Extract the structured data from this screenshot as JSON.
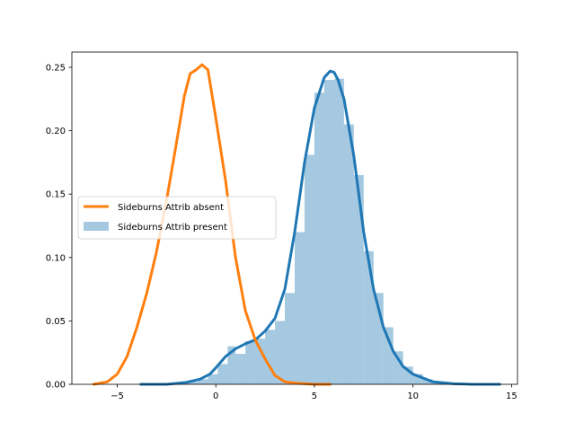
{
  "chart_data": {
    "type": "area",
    "title": "",
    "xlabel": "",
    "ylabel": "",
    "xlim": [
      -7.3,
      15.3
    ],
    "ylim": [
      0,
      0.262
    ],
    "x_ticks": [
      -5,
      0,
      5,
      10,
      15
    ],
    "y_ticks": [
      0.0,
      0.05,
      0.1,
      0.15,
      0.2,
      0.25
    ],
    "x_tick_labels": [
      "−5",
      "0",
      "5",
      "10",
      "15"
    ],
    "y_tick_labels": [
      "0.00",
      "0.05",
      "0.10",
      "0.15",
      "0.20",
      "0.25"
    ],
    "legend_placement": "center-left",
    "series": [
      {
        "name": "Sideburns Attrib absent",
        "type": "line",
        "color": "#ff7f0e",
        "x": [
          -6.2,
          -5.5,
          -5.0,
          -4.5,
          -4.0,
          -3.5,
          -3.0,
          -2.5,
          -2.0,
          -1.6,
          -1.3,
          -1.0,
          -0.7,
          -0.4,
          0.0,
          0.5,
          1.0,
          1.5,
          2.0,
          2.5,
          3.0,
          3.5,
          4.0,
          5.0,
          5.8
        ],
        "y": [
          0.0,
          0.002,
          0.008,
          0.022,
          0.045,
          0.072,
          0.105,
          0.145,
          0.19,
          0.227,
          0.245,
          0.248,
          0.252,
          0.248,
          0.21,
          0.16,
          0.1,
          0.058,
          0.035,
          0.02,
          0.007,
          0.002,
          0.001,
          0.0,
          0.0
        ]
      },
      {
        "name": "",
        "type": "line",
        "color": "#1f77b4",
        "x": [
          -3.8,
          -2.5,
          -1.5,
          -0.8,
          -0.3,
          0.0,
          0.5,
          1.0,
          1.5,
          2.0,
          2.5,
          3.0,
          3.5,
          4.0,
          4.5,
          5.0,
          5.5,
          5.8,
          6.0,
          6.2,
          6.5,
          7.0,
          7.5,
          8.0,
          8.5,
          9.0,
          9.5,
          10.0,
          11.0,
          12.0,
          13.0,
          14.4
        ],
        "y": [
          0.0,
          0.0,
          0.0015,
          0.004,
          0.008,
          0.013,
          0.022,
          0.028,
          0.032,
          0.035,
          0.042,
          0.052,
          0.075,
          0.12,
          0.175,
          0.218,
          0.242,
          0.247,
          0.246,
          0.24,
          0.225,
          0.18,
          0.12,
          0.075,
          0.045,
          0.026,
          0.014,
          0.008,
          0.002,
          0.0005,
          0.0,
          0.0
        ]
      },
      {
        "name": "Sideburns Attrib present",
        "type": "histogram",
        "color": "#1f77b4",
        "opacity": 0.4,
        "bin_edges": [
          -2.4,
          -1.9,
          -1.4,
          -0.9,
          -0.4,
          0.1,
          0.6,
          1.0,
          1.5,
          2.0,
          2.5,
          3.0,
          3.5,
          4.0,
          4.5,
          5.0,
          5.5,
          6.0,
          6.5,
          7.0,
          7.5,
          8.0,
          8.5,
          9.0,
          9.5,
          10.0,
          10.5,
          11.0,
          11.5,
          12.0
        ],
        "values": [
          0.001,
          0.001,
          0.002,
          0.004,
          0.008,
          0.016,
          0.03,
          0.024,
          0.034,
          0.036,
          0.043,
          0.05,
          0.072,
          0.12,
          0.181,
          0.23,
          0.24,
          0.241,
          0.205,
          0.165,
          0.105,
          0.072,
          0.045,
          0.026,
          0.014,
          0.008,
          0.004,
          0.002,
          0.001
        ]
      }
    ]
  }
}
